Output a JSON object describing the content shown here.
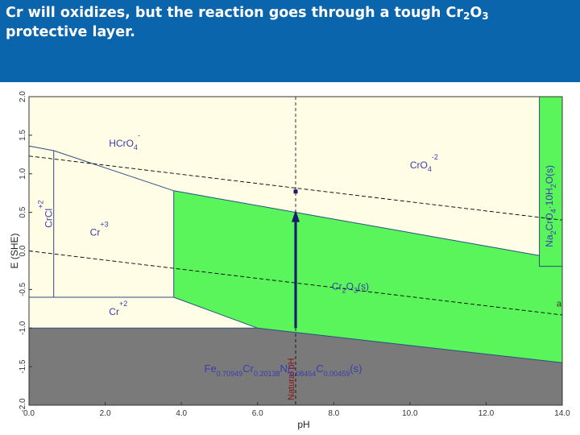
{
  "slide": {
    "title_part1": "Cr will oxidizes, but the reaction goes through a tough Cr",
    "title_sub1": "2",
    "title_part2": "O",
    "title_sub2": "3",
    "title_line2": "protective layer."
  },
  "colors": {
    "header": "#0a65ad",
    "cream": "#fffde6",
    "green": "#5af55a",
    "gray": "#7a7a7a",
    "navy": "#1a1a6e",
    "label_blue": "#3b3bb0",
    "natural_label": "#8b1010"
  },
  "chart_data": {
    "type": "pourbaix",
    "xlabel": "pH",
    "ylabel": "E (SHE)",
    "xlim": [
      0,
      14
    ],
    "ylim": [
      -2,
      2
    ],
    "xticks": [
      0,
      2,
      4,
      6,
      8,
      10,
      12,
      14
    ],
    "xtick_labels": [
      "0.0",
      "2.0",
      "4.0",
      "6.0",
      "8.0",
      "10.0",
      "12.0",
      "14.0"
    ],
    "yticks": [
      -2,
      -1.5,
      -1,
      -0.5,
      0,
      0.5,
      1,
      1.5,
      2
    ],
    "ytick_labels": [
      "-2.0",
      "-1.5",
      "-1.0",
      "-0.5",
      "0.0",
      "0.5",
      "1.0",
      "1.5",
      "2.0"
    ],
    "regions": [
      {
        "name": "HCrO4-",
        "fill": "cream",
        "points": [
          [
            0,
            2
          ],
          [
            13.4,
            2
          ],
          [
            13.4,
            -0.06
          ],
          [
            3.8,
            0.78
          ],
          [
            0.65,
            1.3
          ],
          [
            0,
            1.36
          ]
        ]
      },
      {
        "name": "CrO4-2",
        "fill": "cream",
        "points": [
          [
            13.4,
            2
          ],
          [
            14,
            2
          ],
          [
            14,
            -0.06
          ],
          [
            13.4,
            -0.06
          ]
        ]
      },
      {
        "name": "Cr+3",
        "fill": "cream",
        "points": [
          [
            0.65,
            1.3
          ],
          [
            3.8,
            0.78
          ],
          [
            3.8,
            -0.6
          ],
          [
            0.65,
            -0.6
          ]
        ]
      },
      {
        "name": "CrCl+2",
        "fill": "cream",
        "points": [
          [
            0,
            1.36
          ],
          [
            0.65,
            1.3
          ],
          [
            0.65,
            -0.6
          ],
          [
            0,
            -0.6
          ]
        ]
      },
      {
        "name": "Cr+2",
        "fill": "cream",
        "points": [
          [
            0,
            -0.6
          ],
          [
            3.8,
            -0.6
          ],
          [
            6,
            -1.0
          ],
          [
            0,
            -1.0
          ]
        ]
      },
      {
        "name": "Cr2O3(s)",
        "fill": "green",
        "points": [
          [
            3.8,
            0.78
          ],
          [
            13.4,
            -0.06
          ],
          [
            13.4,
            -0.2
          ],
          [
            14,
            -0.2
          ],
          [
            14,
            -1.45
          ],
          [
            6,
            -1.0
          ],
          [
            3.8,
            -0.6
          ]
        ]
      },
      {
        "name": "Na2CrO4.10H2O(s)",
        "fill": "green",
        "points": [
          [
            13.4,
            2
          ],
          [
            14,
            2
          ],
          [
            14,
            -0.2
          ],
          [
            13.4,
            -0.2
          ]
        ]
      },
      {
        "name": "Fe-Cr-Ni-C(s)",
        "fill": "gray",
        "points": [
          [
            0,
            -1.0
          ],
          [
            6,
            -1.0
          ],
          [
            14,
            -1.45
          ],
          [
            14,
            -2
          ],
          [
            0,
            -2
          ]
        ]
      }
    ],
    "boundaries": [
      {
        "points": [
          [
            0,
            1.36
          ],
          [
            0.65,
            1.3
          ],
          [
            3.8,
            0.78
          ],
          [
            13.4,
            -0.06
          ]
        ]
      },
      {
        "points": [
          [
            13.4,
            2
          ],
          [
            13.4,
            -0.2
          ],
          [
            14,
            -0.2
          ]
        ]
      },
      {
        "points": [
          [
            0.65,
            1.3
          ],
          [
            0.65,
            -0.6
          ]
        ]
      },
      {
        "points": [
          [
            3.8,
            0.78
          ],
          [
            3.8,
            -0.6
          ]
        ]
      },
      {
        "points": [
          [
            0,
            -0.6
          ],
          [
            3.8,
            -0.6
          ],
          [
            6,
            -1.0
          ]
        ]
      },
      {
        "points": [
          [
            0,
            -1.0
          ],
          [
            6,
            -1.0
          ],
          [
            14,
            -1.45
          ]
        ]
      }
    ],
    "water_lines": [
      {
        "points": [
          [
            0,
            1.23
          ],
          [
            14,
            0.4
          ]
        ]
      },
      {
        "points": [
          [
            0,
            0.0
          ],
          [
            14,
            -0.83
          ]
        ]
      }
    ],
    "natural_pH": {
      "label": "Natural pH",
      "x": 7.0
    },
    "arrow": {
      "x": 7.0,
      "from": -1.0,
      "to": 0.5
    },
    "marker": {
      "x": 7.0,
      "y": 0.77
    },
    "region_labels": [
      {
        "base": "HCrO",
        "sub": "4",
        "sup": "-",
        "x": 2.1,
        "y": 1.35
      },
      {
        "base": "CrO",
        "sub": "4",
        "sup": "-2",
        "x": 10.0,
        "y": 1.07
      },
      {
        "base": "Cr",
        "sub": "",
        "sup": "+3",
        "x": 1.6,
        "y": 0.2
      },
      {
        "base": "CrCl",
        "sub": "",
        "sup": "+2",
        "x": 0.6,
        "y": 0.3,
        "rotate": -90
      },
      {
        "base": "Cr",
        "sub": "",
        "sup": "+2",
        "x": 2.1,
        "y": -0.83
      },
      {
        "base": "Cr",
        "sub": "2",
        "sup": "",
        "tail": "O",
        "sub2": "3",
        "tail2": "(s)",
        "x": 7.95,
        "y": -0.5
      },
      {
        "base": "Na",
        "sub": "2",
        "sup": "",
        "tail": "CrO",
        "sub2": "4",
        "tail2": "·10H",
        "sub3": "2",
        "tail3": "O(s)",
        "x": 13.75,
        "y": 0.05,
        "rotate": -90
      }
    ],
    "alloy_label": [
      {
        "t": "Fe",
        "s": false
      },
      {
        "t": "0.70949",
        "s": true
      },
      {
        "t": "Cr",
        "s": false
      },
      {
        "t": "0.20138",
        "s": true
      },
      {
        "t": "Ni",
        "s": false
      },
      {
        "t": "0.08454",
        "s": true
      },
      {
        "t": "C",
        "s": false
      },
      {
        "t": "0.00459",
        "s": true
      },
      {
        "t": "(s)",
        "s": false
      }
    ],
    "alloy_pos": {
      "x": 4.6,
      "y": -1.57
    },
    "edge_label": {
      "text": "a",
      "x": 13.85,
      "y": -0.72
    }
  }
}
